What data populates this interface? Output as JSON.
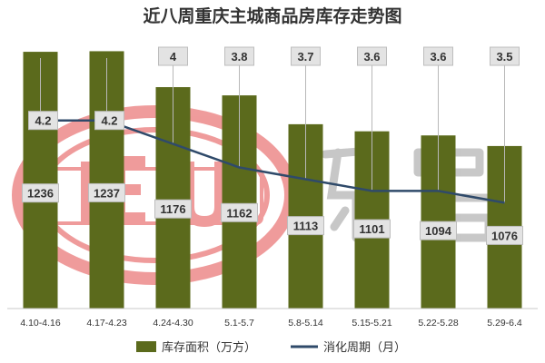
{
  "chart_data": {
    "title": "近八周重庆主城商品房库存走势图",
    "categories": [
      "4.10-4.16",
      "4.17-4.23",
      "4.24-4.30",
      "5.1-5.7",
      "5.8-5.14",
      "5.15-5.21",
      "5.22-5.28",
      "5.29-6.4"
    ],
    "series": [
      {
        "name": "库存面积（万方）",
        "type": "bar",
        "color": "#5b6a1c",
        "values": [
          1236,
          1237,
          1176,
          1162,
          1113,
          1101,
          1094,
          1076
        ]
      },
      {
        "name": "消化周期（月）",
        "type": "line",
        "color": "#2f4a6a",
        "values": [
          4.2,
          4.2,
          4,
          3.8,
          3.7,
          3.6,
          3.6,
          3.5
        ]
      }
    ],
    "bar_ylim": [
      800,
      1250
    ],
    "line_ylim": [
      2.6,
      4.9
    ],
    "grid": false,
    "legend_position": "bottom",
    "watermark": "LEJU 乐居"
  }
}
